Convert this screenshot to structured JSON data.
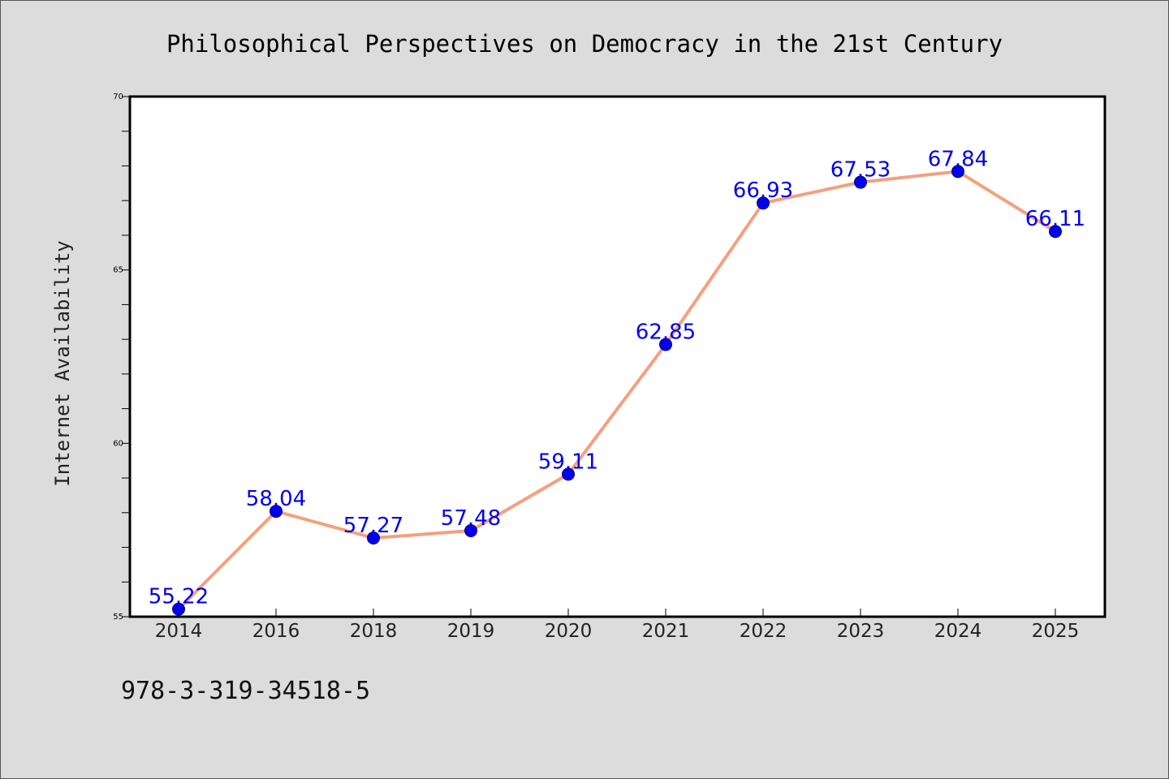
{
  "chart_data": {
    "type": "line",
    "title": "Philosophical Perspectives on Democracy in the 21st Century",
    "xlabel": "",
    "ylabel": "Internet Availability",
    "categories": [
      "2014",
      "2016",
      "2018",
      "2019",
      "2020",
      "2021",
      "2022",
      "2023",
      "2024",
      "2025"
    ],
    "series": [
      {
        "values": [
          55.22,
          58.04,
          57.27,
          57.48,
          59.11,
          62.85,
          66.93,
          67.53,
          67.84,
          66.11
        ]
      }
    ],
    "data_labels": [
      "55.22",
      "58.04",
      "57.27",
      "57.48",
      "59.11",
      "62.85",
      "66.93",
      "67.53",
      "67.84",
      "66.11"
    ],
    "ylim": [
      55,
      70
    ],
    "yticks": [
      "55",
      "60",
      "65",
      "70"
    ],
    "grid": false,
    "legend": "none",
    "colors": {
      "line": "#f4a07e",
      "marker": "#0000ee",
      "data_label": "#0000ee",
      "background": "#dcdcdc",
      "plot_area": "#ffffff"
    }
  },
  "footer": {
    "code": "978-3-319-34518-5"
  }
}
